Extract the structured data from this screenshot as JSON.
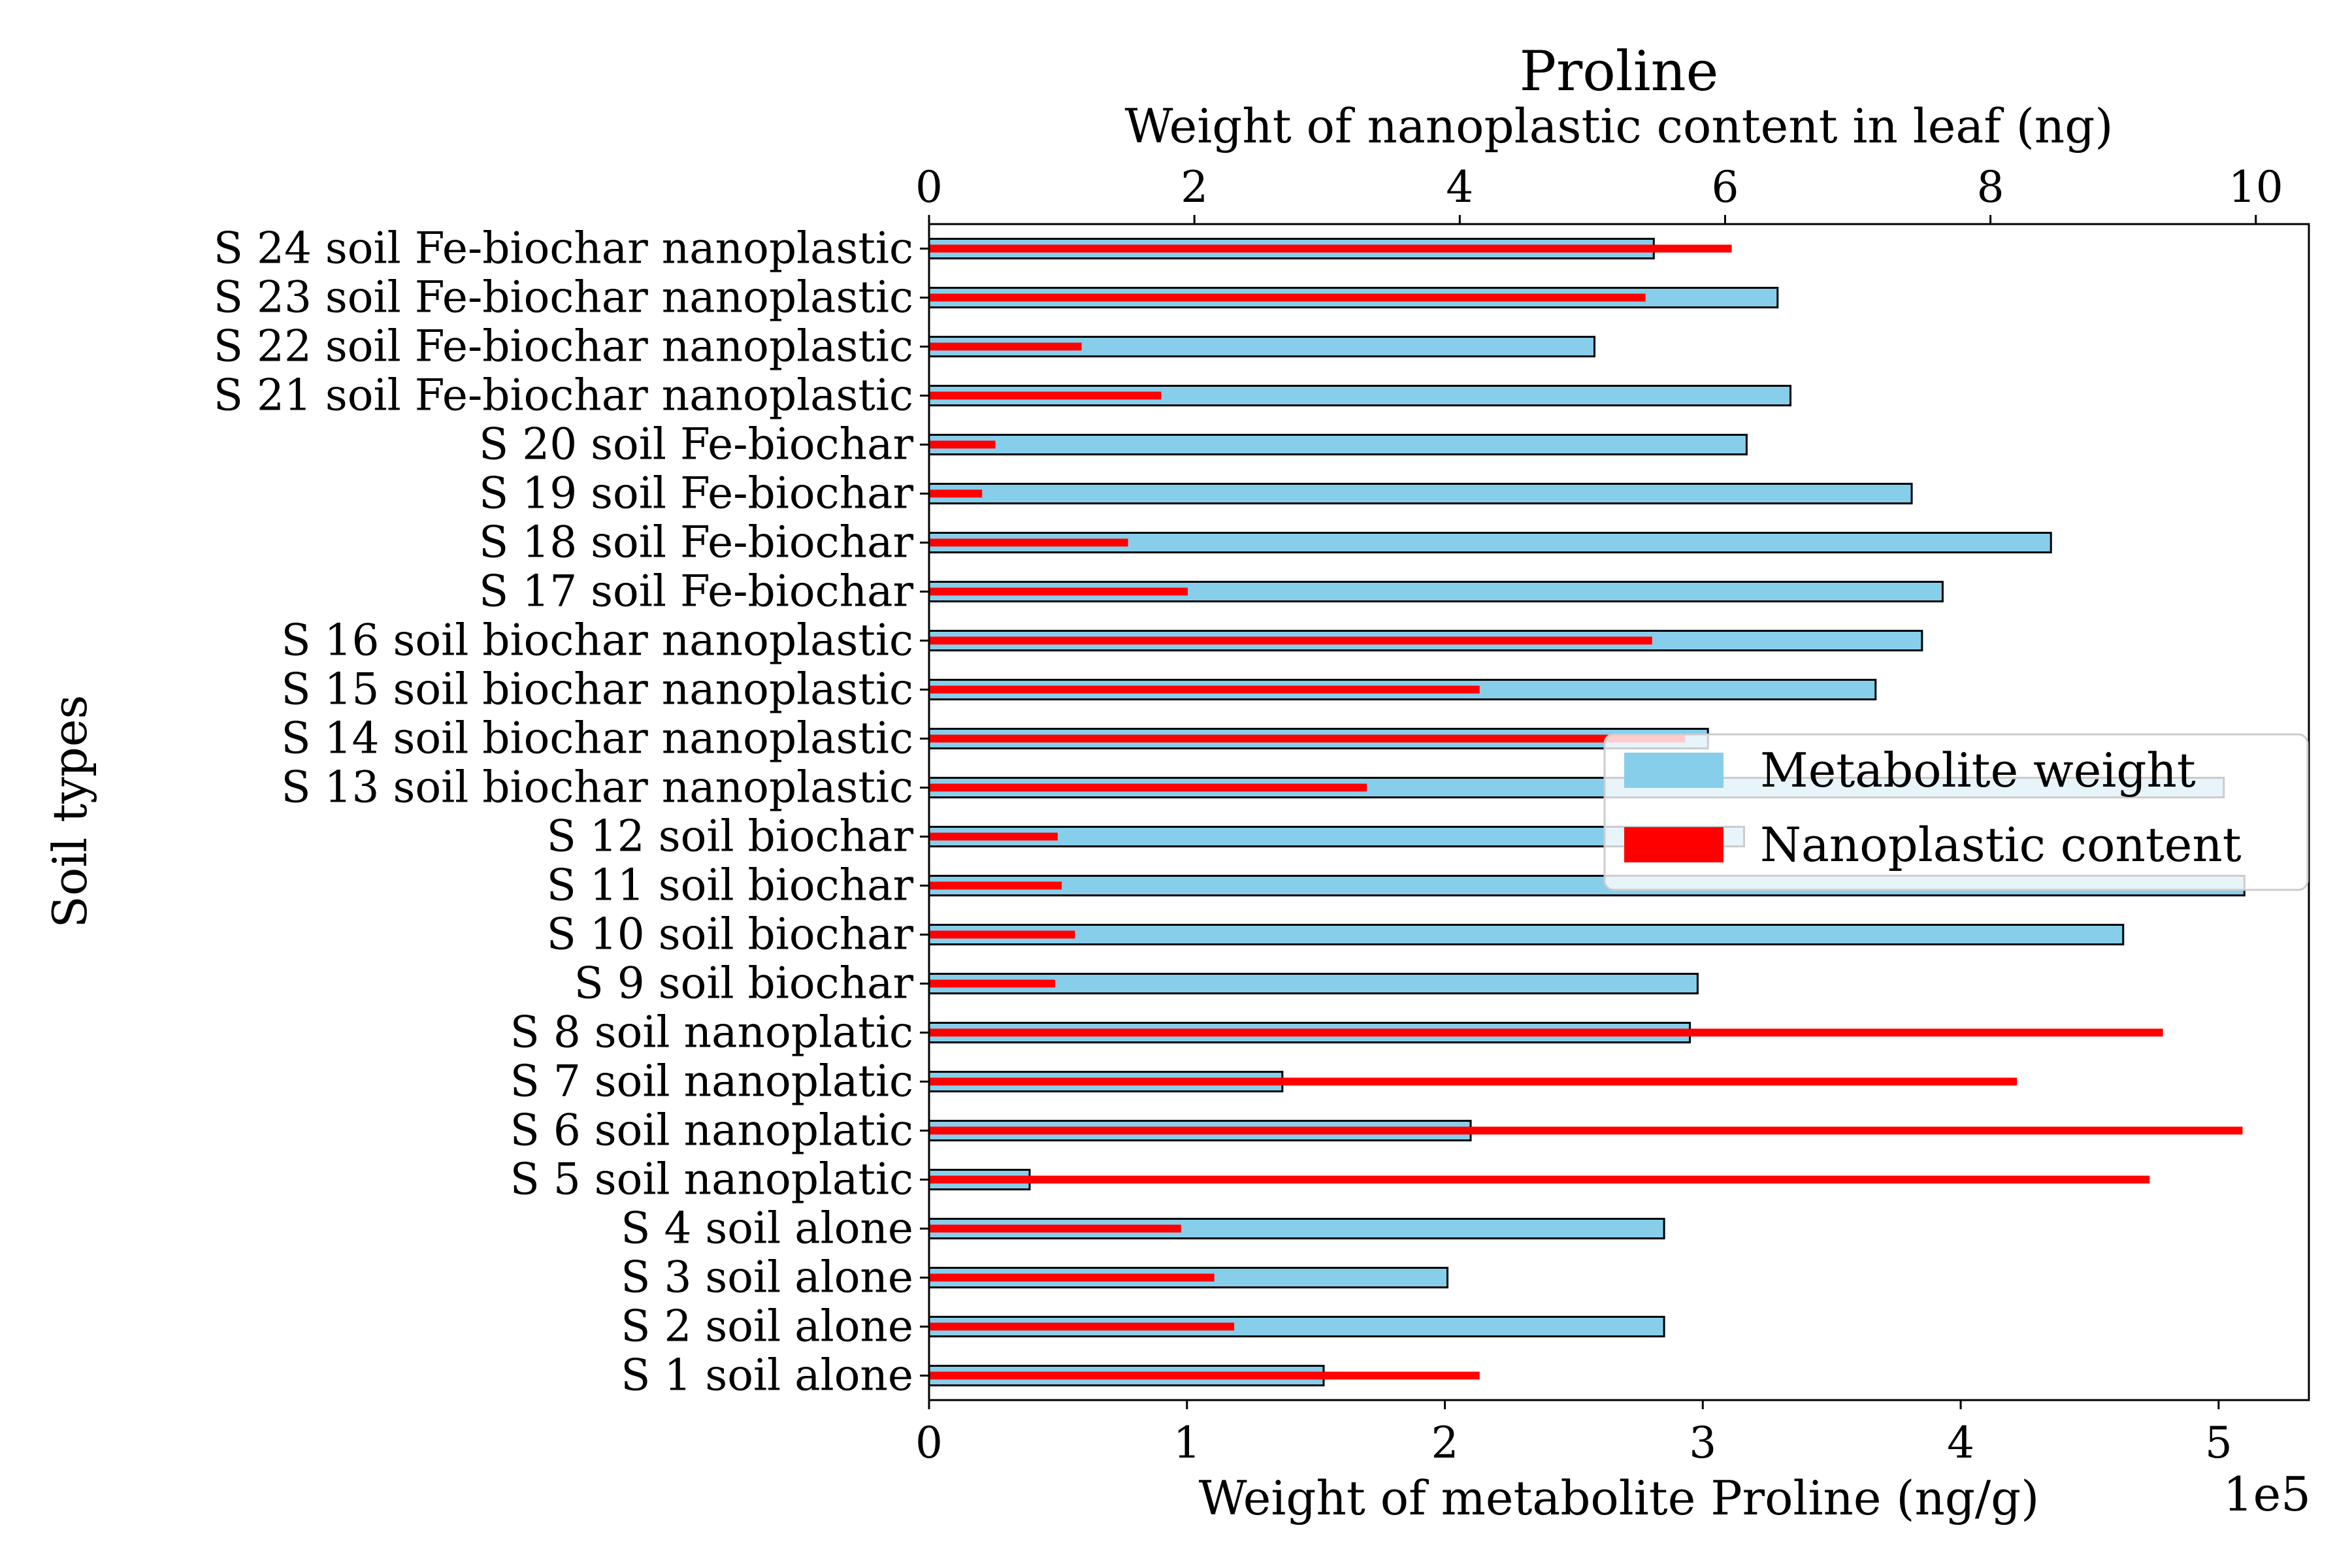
{
  "chart_data": {
    "type": "bar",
    "orientation": "horizontal",
    "title": "Proline",
    "title_color": "#a52a2a",
    "ylabel": "Soil types",
    "xlabel_bottom": "Weight of metabolite Proline (ng/g)",
    "xlabel_top": "Weight of nanoplastic content in leaf (ng)",
    "bottom_scale_label": "1e5",
    "bottom_axis": {
      "range": [
        0,
        5.35
      ],
      "ticks": [
        0,
        1,
        2,
        3,
        4,
        5
      ],
      "units_multiplier": 100000
    },
    "top_axis": {
      "range": [
        0,
        10.4
      ],
      "ticks": [
        0,
        2,
        4,
        6,
        8,
        10
      ]
    },
    "categories": [
      "S 1 soil alone",
      "S 2 soil alone",
      "S 3 soil alone",
      "S 4 soil alone",
      "S 5 soil nanoplatic",
      "S 6 soil nanoplatic",
      "S 7 soil nanoplatic",
      "S 8 soil nanoplatic",
      "S 9 soil biochar",
      "S 10 soil biochar",
      "S 11 soil biochar",
      "S 12 soil biochar",
      "S 13 soil biochar nanoplastic",
      "S 14 soil biochar nanoplastic",
      "S 15 soil biochar nanoplastic",
      "S 16 soil biochar nanoplastic",
      "S 17 soil Fe-biochar",
      "S 18 soil Fe-biochar",
      "S 19 soil Fe-biochar",
      "S 20 soil Fe-biochar",
      "S 21 soil Fe-biochar nanoplastic",
      "S 22 soil Fe-biochar nanoplastic",
      "S 23 soil Fe-biochar nanoplastic",
      "S 24 soil Fe-biochar nanoplastic"
    ],
    "series": [
      {
        "name": "Metabolite weight",
        "axis": "bottom",
        "color": "#87ceeb",
        "edge_color": "#000000",
        "values": [
          153000,
          285000,
          201000,
          285000,
          39000,
          210000,
          137000,
          295000,
          298000,
          463000,
          510000,
          316000,
          502000,
          302000,
          367000,
          385000,
          393000,
          435000,
          381000,
          317000,
          334000,
          258000,
          329000,
          281000
        ]
      },
      {
        "name": "Nanoplastic content",
        "axis": "top",
        "color": "#ff0000",
        "values": [
          4.15,
          2.3,
          2.15,
          1.9,
          9.2,
          9.9,
          8.2,
          9.3,
          0.95,
          1.1,
          1.0,
          0.97,
          3.3,
          5.7,
          4.15,
          5.45,
          1.95,
          1.5,
          0.4,
          0.5,
          1.75,
          1.15,
          5.4,
          6.05
        ]
      }
    ],
    "legend": {
      "placement": "center-right",
      "entries": [
        "Metabolite weight",
        "Nanoplastic content"
      ]
    },
    "grid": false
  }
}
